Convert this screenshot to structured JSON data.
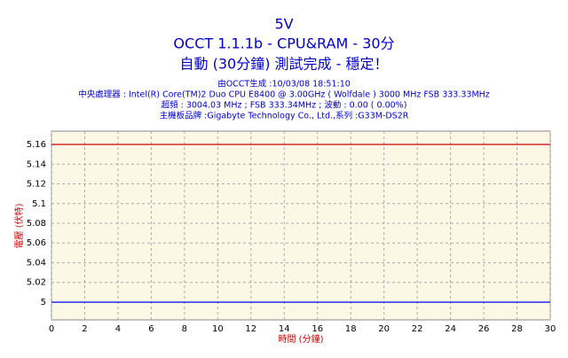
{
  "chart_data": {
    "type": "line",
    "title": "5V",
    "subtitle": "OCCT 1.1.1b - CPU&RAM - 30分",
    "status": "自動 (30分鐘) 測試完成 - 穩定！",
    "info": [
      "由OCCT生成 :10/03/08 18:51:10",
      "中央處理器 : Intel(R) Core(TM)2 Duo CPU E8400 @ 3.00GHz ( Wolfdale ) 3000 MHz FSB 333.33MHz",
      "超頻 : 3004.03 MHz ; FSB 333.34MHz ; 波動 : 0.00 ( 0.00%)",
      "主機板品牌 :Gigabyte Technology Co., Ltd.,系列 :G33M-DS2R"
    ],
    "y_label": "電壓 (伏特)",
    "x_label": "時間 (分鐘)",
    "x": [
      0,
      30
    ],
    "series": [
      {
        "color": "#cc0000",
        "values": [
          5.16,
          5.16
        ]
      },
      {
        "color": "#0000ee",
        "values": [
          5,
          5
        ]
      }
    ],
    "xlim": [
      0,
      30
    ],
    "xticks": [
      0,
      2,
      4,
      6,
      8,
      10,
      12,
      14,
      16,
      18,
      20,
      22,
      24,
      26,
      28,
      30
    ],
    "ylim": [
      4.982,
      5.1735
    ],
    "yticks": [
      5,
      5.02,
      5.04,
      5.06,
      5.08,
      5.1,
      5.12,
      5.14,
      5.16
    ],
    "grid": true
  }
}
